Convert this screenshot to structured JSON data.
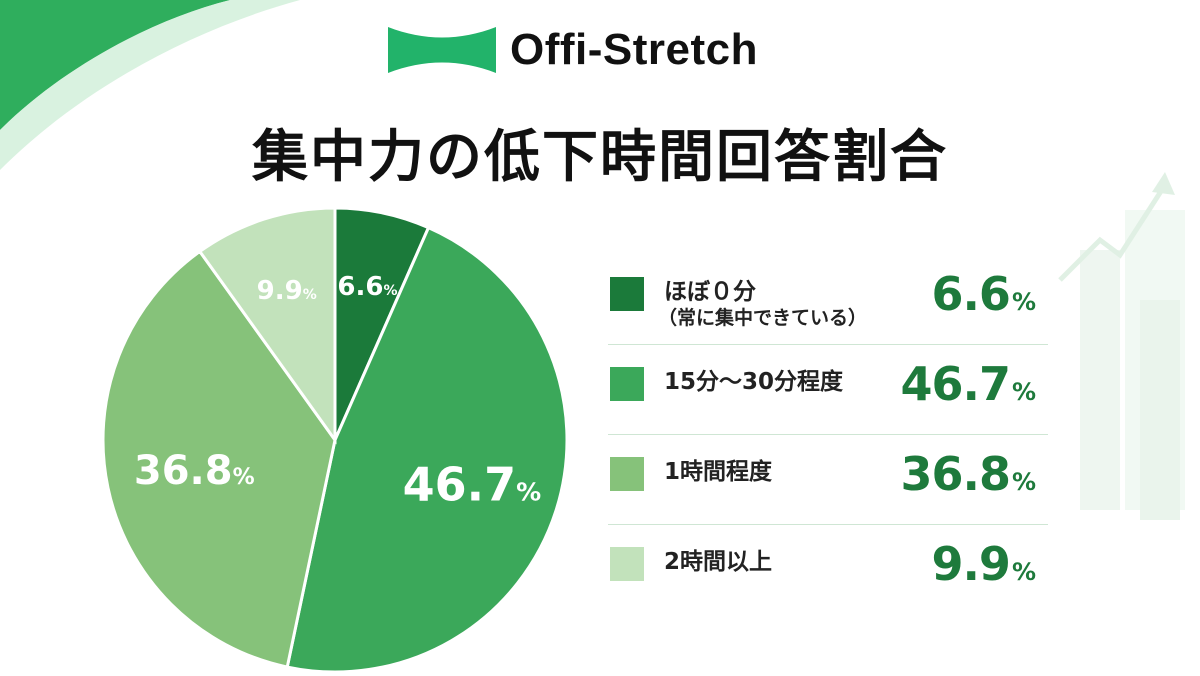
{
  "brand": {
    "name": "Offi-Stretch"
  },
  "title": "集中力の低下時間回答割合",
  "colors": {
    "slice_1": "#1b7a3a",
    "slice_2": "#3ba85a",
    "slice_3": "#86c27a",
    "slice_4": "#c2e2bb",
    "value_text": "#1e7a3c",
    "brand_mark": "#22b36a"
  },
  "chart_data": {
    "type": "pie",
    "title": "集中力の低下時間回答割合",
    "categories": [
      "ほぼ0分（常に集中できている）",
      "15分〜30分程度",
      "1時間程度",
      "2時間以上"
    ],
    "values": [
      6.6,
      46.7,
      36.8,
      9.9
    ],
    "unit": "%",
    "legend_position": "right",
    "start_angle": "top, clockwise"
  },
  "legend": [
    {
      "label": "ほぼ０分",
      "sub": "（常に集中できている）",
      "value": "6.6",
      "unit": "%"
    },
    {
      "label": "15分〜30分程度",
      "value": "46.7",
      "unit": "%"
    },
    {
      "label": "1時間程度",
      "value": "36.8",
      "unit": "%"
    },
    {
      "label": "2時間以上",
      "value": "9.9",
      "unit": "%"
    }
  ],
  "pie_labels": [
    {
      "value": "6.6",
      "unit": "%"
    },
    {
      "value": "46.7",
      "unit": "%"
    },
    {
      "value": "36.8",
      "unit": "%"
    },
    {
      "value": "9.9",
      "unit": "%"
    }
  ]
}
